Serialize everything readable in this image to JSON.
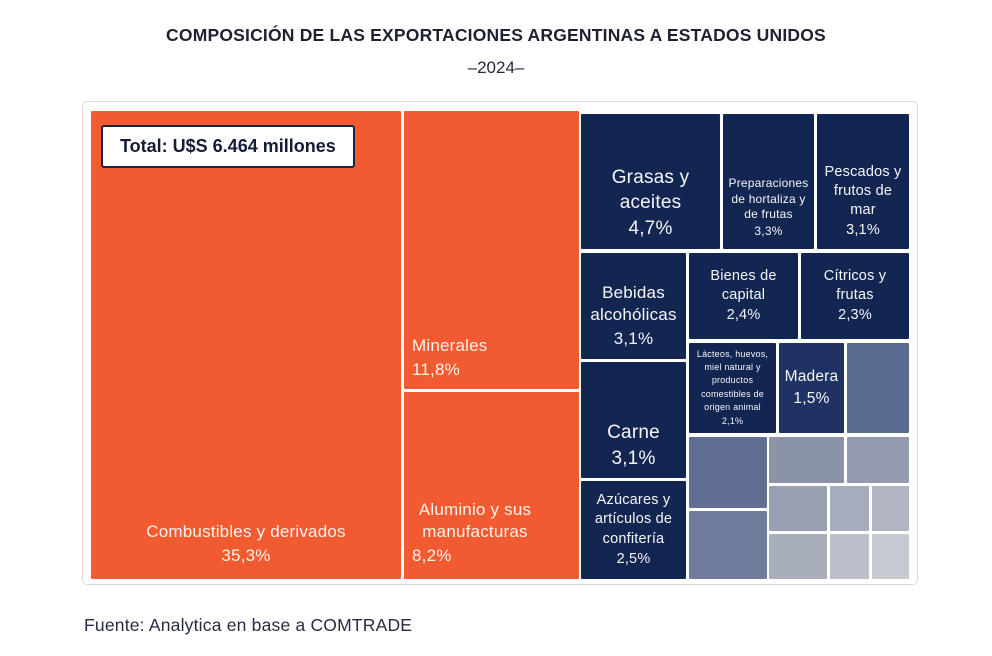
{
  "header": {
    "title": "COMPOSICIÓN DE LAS EXPORTACIONES ARGENTINAS A ESTADOS UNIDOS",
    "subtitle": "–2024–"
  },
  "footer": {
    "source": "Fuente: Analytica en base a COMTRADE"
  },
  "colors": {
    "orange": "#F25B31",
    "navy": "#132551",
    "navy_light": "#1E3363",
    "slate": "#5B6B90",
    "gray_gradient": [
      "#5F6E92",
      "#6F7C9C",
      "#8B93A8",
      "#949BAF",
      "#99A0B2",
      "#A7ACBC",
      "#B1B5C2",
      "#A9AEBB",
      "#BCBFC9",
      "#C7C9D1"
    ],
    "text_on_blocks": "#FFFFFF"
  },
  "chart_data": {
    "type": "treemap",
    "title": "COMPOSICIÓN DE LAS EXPORTACIONES ARGENTINAS A ESTADOS UNIDOS",
    "subtitle": "–2024–",
    "total_label": "Total: U$S 6.464 millones",
    "unit": "%",
    "items": [
      {
        "label": "Combustibles y derivados",
        "value": 35.3,
        "pct": "35,3%",
        "group": "orange"
      },
      {
        "label": "Minerales",
        "value": 11.8,
        "pct": "11,8%",
        "group": "orange"
      },
      {
        "label": "Aluminio y sus manufacturas",
        "value": 8.2,
        "pct": "8,2%",
        "group": "orange"
      },
      {
        "label": "Grasas y aceites",
        "value": 4.7,
        "pct": "4,7%",
        "group": "navy"
      },
      {
        "label": "Preparaciones de hortaliza y de frutas",
        "value": 3.3,
        "pct": "3,3%",
        "group": "navy"
      },
      {
        "label": "Pescados y frutos de mar",
        "value": 3.1,
        "pct": "3,1%",
        "group": "navy"
      },
      {
        "label": "Bebidas alcohólicas",
        "value": 3.1,
        "pct": "3,1%",
        "group": "navy"
      },
      {
        "label": "Carne",
        "value": 3.1,
        "pct": "3,1%",
        "group": "navy"
      },
      {
        "label": "Azúcares y artículos de confitería",
        "value": 2.5,
        "pct": "2,5%",
        "group": "navy"
      },
      {
        "label": "Bienes de capital",
        "value": 2.4,
        "pct": "2,4%",
        "group": "navy"
      },
      {
        "label": "Cítricos y frutas",
        "value": 2.3,
        "pct": "2,3%",
        "group": "navy"
      },
      {
        "label": "Lácteos, huevos, miel natural y productos comestibles de origen animal",
        "value": 2.1,
        "pct": "2,1%",
        "group": "navy"
      },
      {
        "label": "Madera",
        "value": 1.5,
        "pct": "1,5%",
        "group": "navy"
      }
    ],
    "unlabeled_cells": {
      "count": 11,
      "note": "smaller categories shown without labels, shaded from slate blue to light gray"
    }
  }
}
